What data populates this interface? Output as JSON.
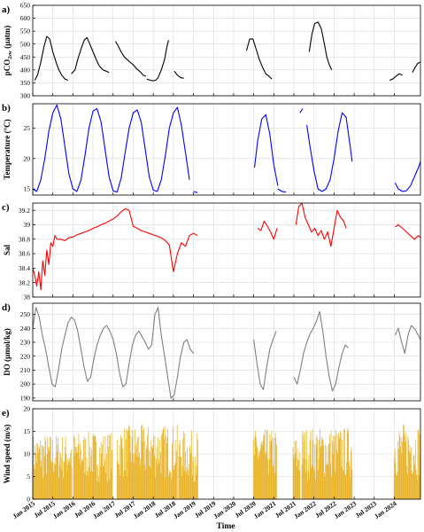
{
  "figure": {
    "xlabel": "Time",
    "x_ticks": [
      "Jan 2015",
      "Jul 2015",
      "Jan 2016",
      "Jul 2016",
      "Jan 2017",
      "Jul 2017",
      "Jan 2018",
      "Jul 2018",
      "Jan 2019",
      "Jul 2019",
      "Jan 2020",
      "Jul 2020",
      "Jan 2021",
      "Jul 2021",
      "Jan 2022",
      "Jul 2022",
      "Jan 2023",
      "Jul 2023",
      "Jan 2024"
    ],
    "x_tick_values": [
      2015.0,
      2015.5,
      2016.0,
      2016.5,
      2017.0,
      2017.5,
      2018.0,
      2018.5,
      2019.0,
      2019.5,
      2020.0,
      2020.5,
      2021.0,
      2021.5,
      2022.0,
      2022.5,
      2023.0,
      2023.5,
      2024.0
    ],
    "xlim": [
      2015.0,
      2024.65
    ]
  },
  "chart_data": [
    {
      "type": "line",
      "panel_label": "a)",
      "ylabel": "pCO2sw (µatm)",
      "ylabel_main": "pCO",
      "ylabel_sub": "2sw",
      "ylabel_unit": " (µatm)",
      "ylim": [
        300,
        650
      ],
      "yticks": [
        300,
        350,
        400,
        450,
        500,
        550,
        600,
        650
      ],
      "grid": true,
      "color": "#000000",
      "segments": [
        {
          "x": [
            2015.05,
            2015.12,
            2015.2,
            2015.28,
            2015.35,
            2015.42,
            2015.5,
            2015.58,
            2015.65,
            2015.72,
            2015.8,
            2015.88
          ],
          "y": [
            360,
            380,
            430,
            490,
            530,
            520,
            470,
            430,
            400,
            380,
            365,
            360
          ]
        },
        {
          "x": [
            2015.96,
            2016.05,
            2016.12,
            2016.2,
            2016.28,
            2016.35,
            2016.42,
            2016.5,
            2016.58,
            2016.66,
            2016.75,
            2016.83,
            2016.9
          ],
          "y": [
            385,
            400,
            440,
            480,
            515,
            525,
            500,
            470,
            440,
            415,
            400,
            395,
            390
          ]
        },
        {
          "x": [
            2017.06,
            2017.12,
            2017.2,
            2017.28,
            2017.35,
            2017.42,
            2017.5,
            2017.58,
            2017.66,
            2017.75,
            2017.82
          ],
          "y": [
            510,
            495,
            470,
            450,
            440,
            430,
            420,
            405,
            395,
            380,
            375
          ]
        },
        {
          "x": [
            2017.84,
            2017.92,
            2018.0,
            2018.06,
            2018.12,
            2018.2,
            2018.28,
            2018.34,
            2018.38
          ],
          "y": [
            365,
            360,
            358,
            360,
            370,
            400,
            440,
            490,
            515
          ]
        },
        {
          "x": [
            2018.52,
            2018.6,
            2018.68,
            2018.76
          ],
          "y": [
            395,
            380,
            370,
            368
          ]
        },
        {
          "x": [
            2020.32,
            2020.4,
            2020.48,
            2020.56,
            2020.64,
            2020.72,
            2020.8,
            2020.88,
            2020.95
          ],
          "y": [
            475,
            520,
            520,
            480,
            440,
            410,
            385,
            375,
            365
          ]
        },
        {
          "x": [
            2021.88,
            2021.95,
            2022.02,
            2022.1,
            2022.18,
            2022.26,
            2022.32,
            2022.38,
            2022.44
          ],
          "y": [
            470,
            540,
            580,
            585,
            560,
            500,
            450,
            420,
            400
          ]
        },
        {
          "x": [
            2023.88,
            2023.96,
            2024.04,
            2024.12,
            2024.2
          ],
          "y": [
            360,
            365,
            375,
            385,
            380
          ]
        },
        {
          "x": [
            2024.45,
            2024.52,
            2024.58,
            2024.64
          ],
          "y": [
            390,
            410,
            425,
            430
          ]
        }
      ]
    },
    {
      "type": "line",
      "panel_label": "b)",
      "ylabel": "Temperature (°C)",
      "ylim": [
        14,
        29
      ],
      "yticks": [
        15,
        20,
        25
      ],
      "grid": true,
      "color": "#0000ff",
      "segments": [
        {
          "x": [
            2015.0,
            2015.1,
            2015.2,
            2015.3,
            2015.4,
            2015.5,
            2015.6,
            2015.7,
            2015.8,
            2015.9,
            2016.0,
            2016.1,
            2016.2,
            2016.3,
            2016.4,
            2016.5,
            2016.6,
            2016.7,
            2016.8,
            2016.9,
            2017.0,
            2017.1,
            2017.2,
            2017.3,
            2017.4,
            2017.5,
            2017.6,
            2017.7,
            2017.8,
            2017.9,
            2018.0,
            2018.1,
            2018.2,
            2018.3,
            2018.4,
            2018.5,
            2018.6,
            2018.7,
            2018.8,
            2018.9
          ],
          "y": [
            15.0,
            14.6,
            16.5,
            20.0,
            24.5,
            27.5,
            28.8,
            26.5,
            22.0,
            17.5,
            15.0,
            14.6,
            16.5,
            20.5,
            25.0,
            27.8,
            28.2,
            26.0,
            21.5,
            17.0,
            14.7,
            14.5,
            16.8,
            21.0,
            25.0,
            27.5,
            28.0,
            26.0,
            21.5,
            17.0,
            14.8,
            14.6,
            16.5,
            20.5,
            25.0,
            27.5,
            28.4,
            25.5,
            21.0,
            16.5
          ]
        },
        {
          "x": [
            2019.0,
            2019.1
          ],
          "y": [
            14.6,
            14.4
          ]
        },
        {
          "x": [
            2020.52,
            2020.6,
            2020.7,
            2020.8,
            2020.9,
            2021.0,
            2021.1
          ],
          "y": [
            18.5,
            23.0,
            26.5,
            27.2,
            24.0,
            19.0,
            15.5
          ]
        },
        {
          "x": [
            2021.1,
            2021.2,
            2021.3
          ],
          "y": [
            15.0,
            14.6,
            14.5
          ]
        },
        {
          "x": [
            2021.65,
            2021.72
          ],
          "y": [
            27.5,
            28.2
          ]
        },
        {
          "x": [
            2021.82,
            2021.9,
            2022.0,
            2022.1,
            2022.2,
            2022.3,
            2022.4,
            2022.5,
            2022.6,
            2022.7,
            2022.8,
            2022.9,
            2022.95
          ],
          "y": [
            25.5,
            22.0,
            18.0,
            15.0,
            14.6,
            15.0,
            16.5,
            20.0,
            24.5,
            27.5,
            26.8,
            22.0,
            19.5
          ]
        },
        {
          "x": [
            2024.02,
            2024.1,
            2024.2,
            2024.3,
            2024.4,
            2024.5,
            2024.6,
            2024.65
          ],
          "y": [
            16.0,
            15.0,
            14.6,
            14.7,
            15.5,
            17.0,
            18.5,
            19.5
          ]
        }
      ]
    },
    {
      "type": "line",
      "panel_label": "c)",
      "ylabel": "Sal",
      "ylim": [
        38.0,
        39.3
      ],
      "yticks": [
        38,
        38.2,
        38.4,
        38.6,
        38.8,
        39,
        39.2
      ],
      "grid": true,
      "color": "#ff0000",
      "segments": [
        {
          "x": [
            2015.0,
            2015.05,
            2015.1,
            2015.15,
            2015.2,
            2015.25,
            2015.3,
            2015.35,
            2015.4,
            2015.45,
            2015.5,
            2015.55,
            2015.6,
            2015.7,
            2015.8,
            2015.9,
            2016.0,
            2016.1,
            2016.2,
            2016.3,
            2016.4,
            2016.5,
            2016.6,
            2016.7,
            2016.8,
            2016.9,
            2017.0,
            2017.1,
            2017.2,
            2017.3,
            2017.4,
            2017.5,
            2017.6,
            2017.7,
            2017.8,
            2017.9,
            2018.0,
            2018.1,
            2018.2,
            2018.3,
            2018.4,
            2018.5,
            2018.6,
            2018.7,
            2018.8,
            2018.9,
            2019.0,
            2019.1
          ],
          "y": [
            38.4,
            38.3,
            38.15,
            38.35,
            38.1,
            38.5,
            38.3,
            38.65,
            38.45,
            38.75,
            38.7,
            38.85,
            38.8,
            38.8,
            38.78,
            38.82,
            38.83,
            38.86,
            38.88,
            38.9,
            38.92,
            38.95,
            38.97,
            39.0,
            39.02,
            39.05,
            39.08,
            39.12,
            39.18,
            39.22,
            39.2,
            38.98,
            38.95,
            38.92,
            38.9,
            38.88,
            38.86,
            38.84,
            38.82,
            38.78,
            38.72,
            38.35,
            38.6,
            38.75,
            38.7,
            38.85,
            38.88,
            38.85
          ]
        },
        {
          "x": [
            2020.6,
            2020.68,
            2020.76,
            2020.84,
            2020.92,
            2021.0,
            2021.08
          ],
          "y": [
            38.95,
            38.92,
            39.05,
            38.98,
            38.9,
            38.8,
            38.95
          ]
        },
        {
          "x": [
            2021.55,
            2021.62,
            2021.7,
            2021.78,
            2021.86,
            2021.94,
            2022.02,
            2022.1,
            2022.18,
            2022.26,
            2022.34,
            2022.42,
            2022.5,
            2022.58,
            2022.66,
            2022.74,
            2022.8
          ],
          "y": [
            39.0,
            39.25,
            39.3,
            39.1,
            39.0,
            38.9,
            38.95,
            38.85,
            38.92,
            38.8,
            38.9,
            38.7,
            38.95,
            39.2,
            39.1,
            39.05,
            38.95
          ]
        },
        {
          "x": [
            2024.02,
            2024.1,
            2024.2,
            2024.3,
            2024.4,
            2024.5,
            2024.6,
            2024.65
          ],
          "y": [
            38.97,
            39.0,
            38.95,
            38.9,
            38.85,
            38.8,
            38.85,
            38.82
          ]
        }
      ]
    },
    {
      "type": "line",
      "panel_label": "d)",
      "ylabel": "DO (µmol/kg)",
      "ylim": [
        188,
        258
      ],
      "yticks": [
        190,
        200,
        210,
        220,
        230,
        240,
        250
      ],
      "grid": true,
      "color": "#808080",
      "segments": [
        {
          "x": [
            2015.0,
            2015.08,
            2015.16,
            2015.24,
            2015.32,
            2015.4,
            2015.48,
            2015.56,
            2015.64,
            2015.72,
            2015.8,
            2015.88,
            2015.96,
            2016.04,
            2016.12,
            2016.2,
            2016.28,
            2016.36,
            2016.44,
            2016.52,
            2016.6,
            2016.68,
            2016.76,
            2016.84,
            2016.92,
            2017.0,
            2017.08,
            2017.16,
            2017.24,
            2017.32,
            2017.4,
            2017.48,
            2017.56,
            2017.64,
            2017.72,
            2017.8,
            2017.88,
            2017.96,
            2018.04,
            2018.12,
            2018.2,
            2018.28,
            2018.36,
            2018.44,
            2018.52,
            2018.6,
            2018.68,
            2018.76,
            2018.84,
            2018.92,
            2019.0
          ],
          "y": [
            240,
            255,
            248,
            235,
            225,
            212,
            200,
            198,
            210,
            225,
            235,
            244,
            248,
            246,
            238,
            225,
            212,
            202,
            205,
            218,
            228,
            235,
            240,
            242,
            238,
            232,
            222,
            208,
            198,
            200,
            215,
            228,
            235,
            238,
            234,
            230,
            225,
            228,
            250,
            255,
            235,
            220,
            205,
            190,
            192,
            205,
            220,
            230,
            232,
            225,
            222
          ]
        },
        {
          "x": [
            2020.5,
            2020.58,
            2020.66,
            2020.74,
            2020.82,
            2020.9,
            2020.98,
            2021.06
          ],
          "y": [
            232,
            215,
            200,
            196,
            212,
            225,
            232,
            238
          ]
        },
        {
          "x": [
            2021.5,
            2021.58,
            2021.66,
            2021.74,
            2021.82,
            2021.9,
            2021.98,
            2022.06,
            2022.14,
            2022.22,
            2022.3,
            2022.38,
            2022.46,
            2022.54,
            2022.62,
            2022.7,
            2022.78,
            2022.85
          ],
          "y": [
            205,
            200,
            210,
            222,
            230,
            236,
            240,
            245,
            252,
            238,
            220,
            205,
            195,
            200,
            212,
            222,
            228,
            226
          ]
        },
        {
          "x": [
            2024.02,
            2024.1,
            2024.18,
            2024.26,
            2024.34,
            2024.42,
            2024.5,
            2024.58,
            2024.65
          ],
          "y": [
            235,
            240,
            230,
            222,
            235,
            242,
            240,
            236,
            232
          ]
        }
      ]
    },
    {
      "type": "bar",
      "panel_label": "e)",
      "ylabel": "Wind speed (m/s)",
      "ylim": [
        0,
        20
      ],
      "yticks": [
        0,
        5,
        10,
        15,
        20
      ],
      "grid": true,
      "color": "#e8b020",
      "periods": [
        {
          "start": 2015.0,
          "end": 2015.98,
          "max": 14.5
        },
        {
          "start": 2016.02,
          "end": 2016.98,
          "max": 15.0
        },
        {
          "start": 2017.1,
          "end": 2018.6,
          "max": 16.5
        },
        {
          "start": 2018.63,
          "end": 2019.12,
          "max": 15.2
        },
        {
          "start": 2020.5,
          "end": 2021.08,
          "max": 15.5
        },
        {
          "start": 2021.48,
          "end": 2021.65,
          "max": 14.0
        },
        {
          "start": 2021.7,
          "end": 2022.95,
          "max": 16.0
        },
        {
          "start": 2024.0,
          "end": 2024.65,
          "max": 16.8
        }
      ]
    }
  ]
}
